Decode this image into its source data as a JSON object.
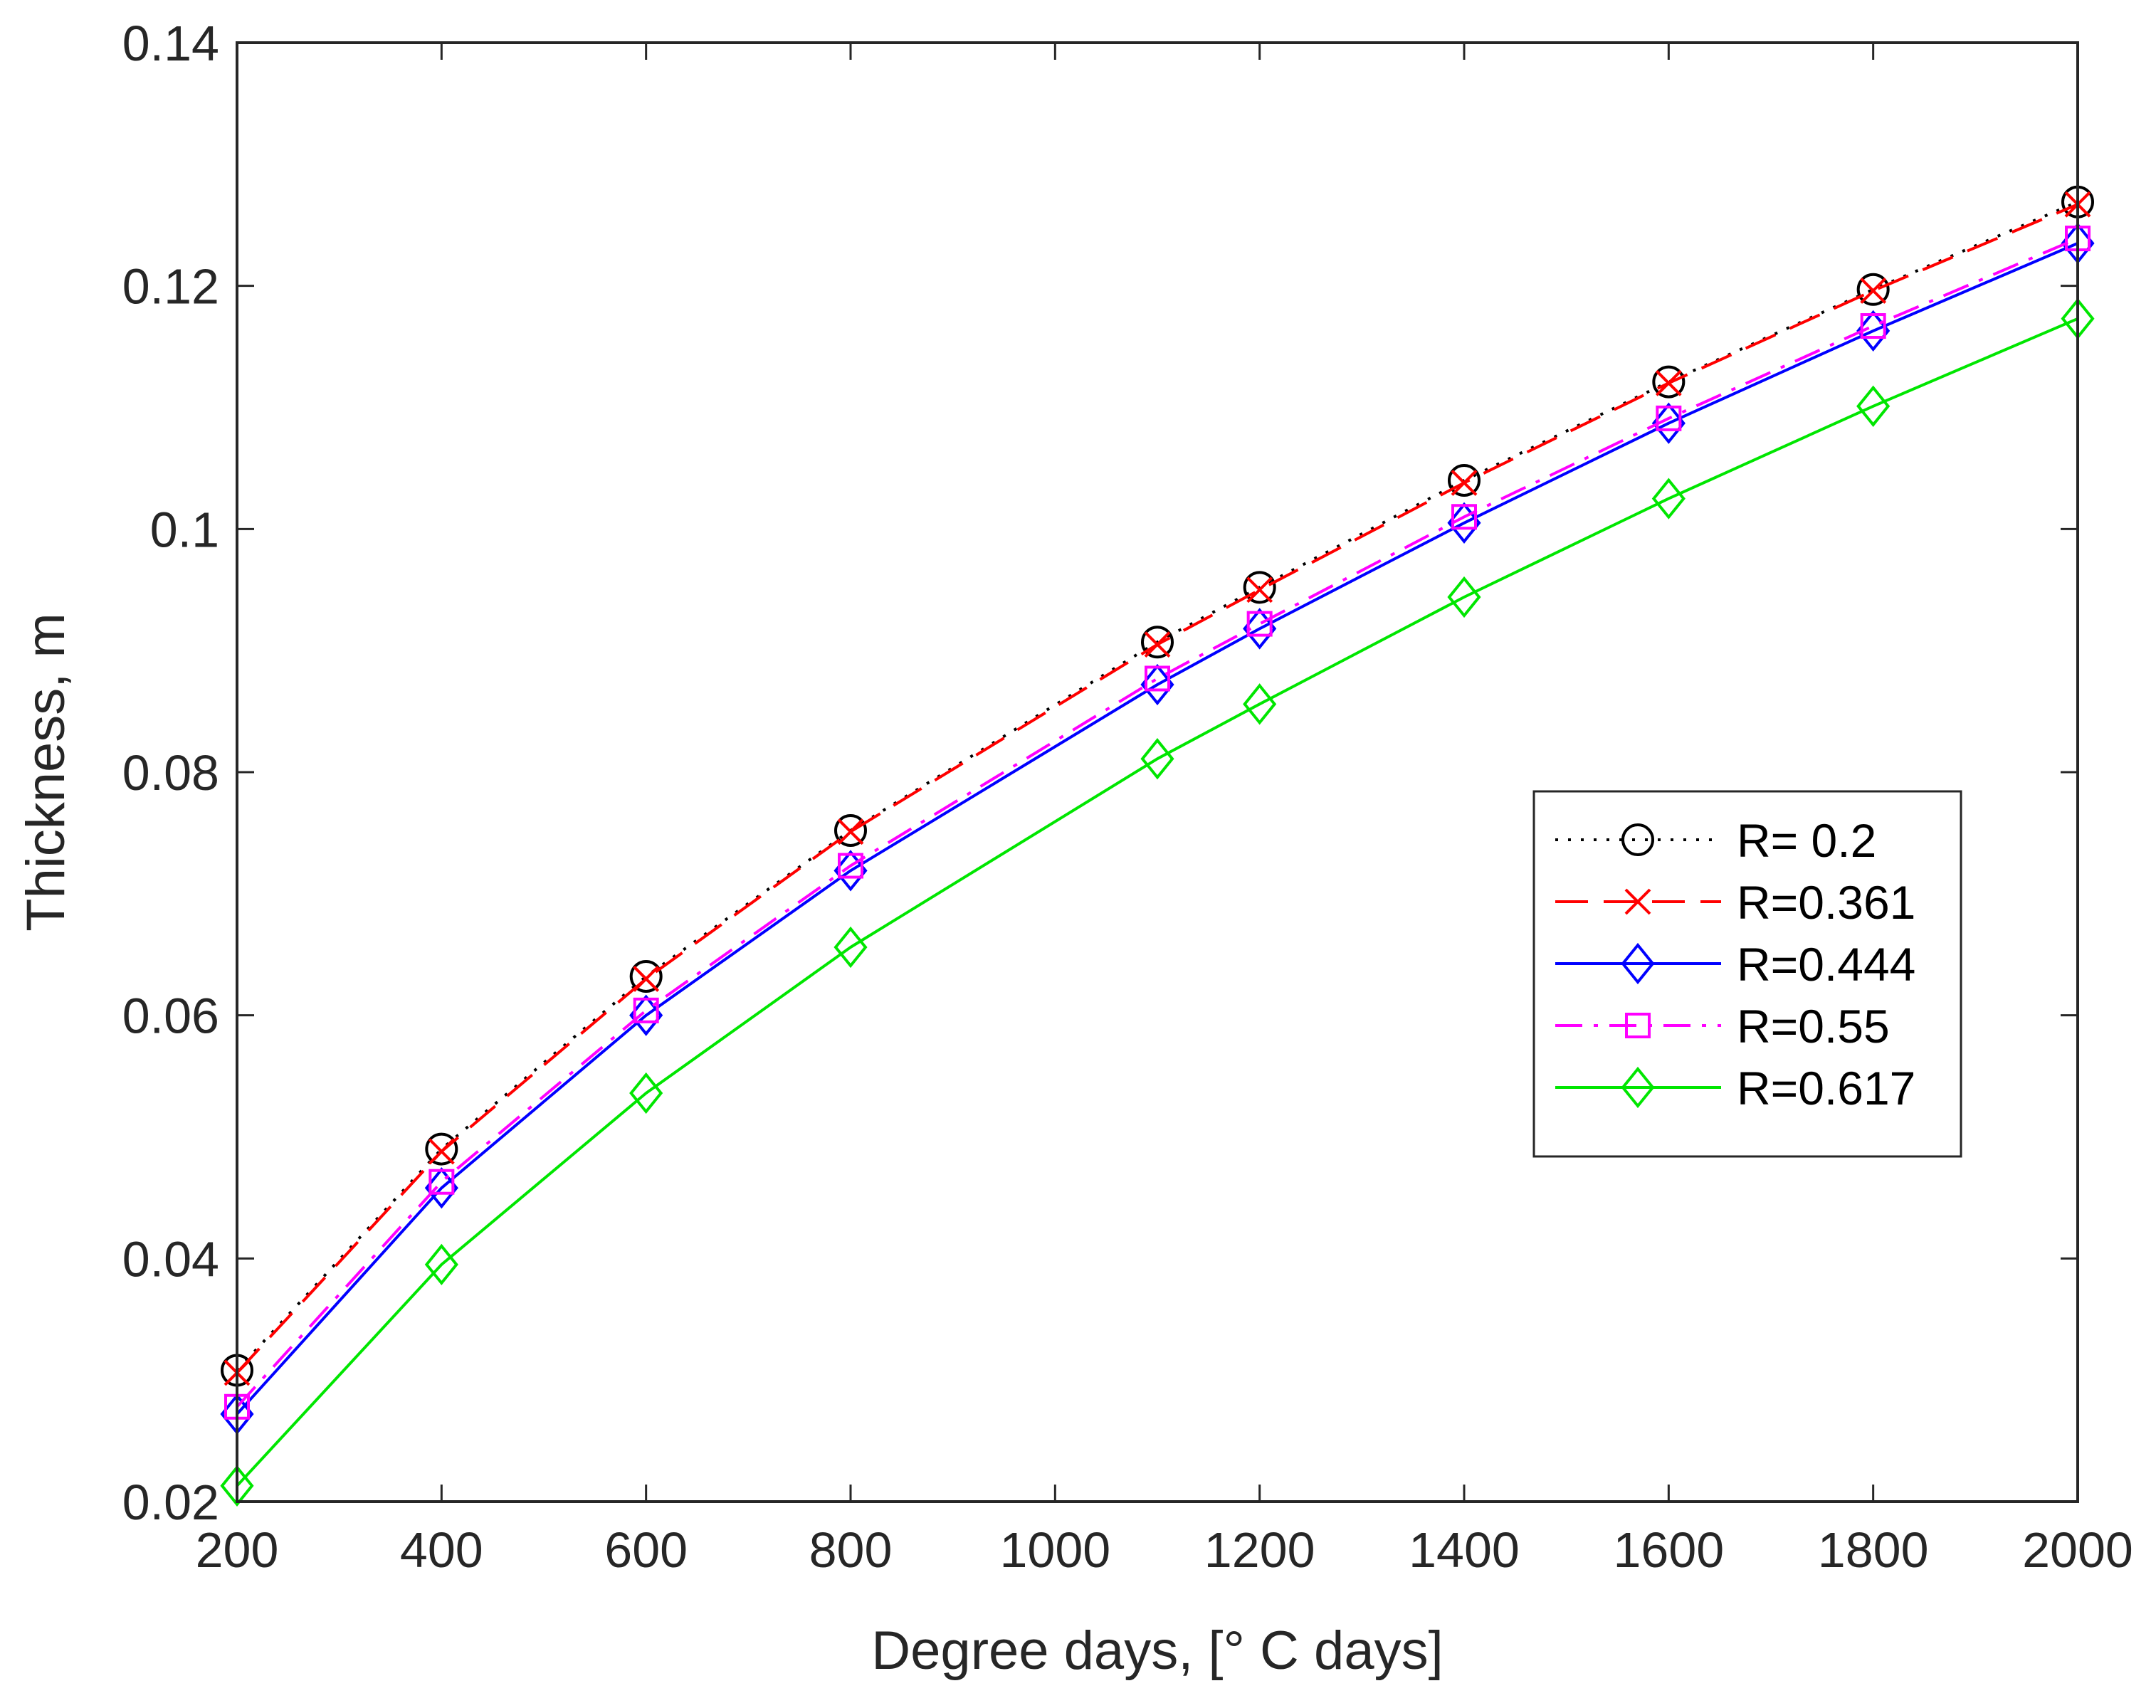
{
  "chart_data": {
    "type": "line",
    "title": "",
    "xlabel": "Degree days, [° C days]",
    "ylabel": "Thickness, m",
    "xlim": [
      200,
      2000
    ],
    "ylim": [
      0.02,
      0.14
    ],
    "xticks": [
      200,
      400,
      600,
      800,
      1000,
      1200,
      1400,
      1600,
      1800,
      2000
    ],
    "xtick_labels": [
      "200",
      "400",
      "600",
      "800",
      "1000",
      "1200",
      "1400",
      "1600",
      "1800",
      "2000"
    ],
    "yticks": [
      0.02,
      0.04,
      0.06,
      0.08,
      0.1,
      0.12,
      0.14
    ],
    "ytick_labels": [
      "0.02",
      "0.04",
      "0.06",
      "0.08",
      "0.1",
      "0.12",
      "0.14"
    ],
    "grid": false,
    "legend_position": "right",
    "x": [
      200,
      400,
      600,
      800,
      1100,
      1200,
      1400,
      1600,
      1800,
      2000
    ],
    "series": [
      {
        "name": "R= 0.2",
        "color": "#000000",
        "dash": "dotted",
        "marker": "circle",
        "values": [
          0.0308,
          0.049,
          0.0632,
          0.0752,
          0.0907,
          0.0952,
          0.104,
          0.1121,
          0.1197,
          0.1269
        ]
      },
      {
        "name": "R=0.361",
        "color": "#ff0000",
        "dash": "dashed",
        "marker": "x",
        "values": [
          0.0306,
          0.0488,
          0.063,
          0.0751,
          0.0905,
          0.095,
          0.1038,
          0.112,
          0.1196,
          0.1267
        ]
      },
      {
        "name": "R=0.444",
        "color": "#0000ff",
        "dash": "solid",
        "marker": "diamond",
        "values": [
          0.0272,
          0.0458,
          0.06,
          0.0719,
          0.0872,
          0.0918,
          0.1005,
          0.1087,
          0.1163,
          0.1235
        ]
      },
      {
        "name": "R=0.55",
        "color": "#ff00ff",
        "dash": "dashdot",
        "marker": "square",
        "values": [
          0.0278,
          0.0463,
          0.0604,
          0.0723,
          0.0877,
          0.0922,
          0.101,
          0.1091,
          0.1167,
          0.1239
        ]
      },
      {
        "name": "R=0.617",
        "color": "#00e600",
        "dash": "solid",
        "marker": "diamond",
        "values": [
          0.0213,
          0.0395,
          0.0536,
          0.0656,
          0.0811,
          0.0856,
          0.0944,
          0.1025,
          0.1101,
          0.1173
        ]
      }
    ]
  }
}
